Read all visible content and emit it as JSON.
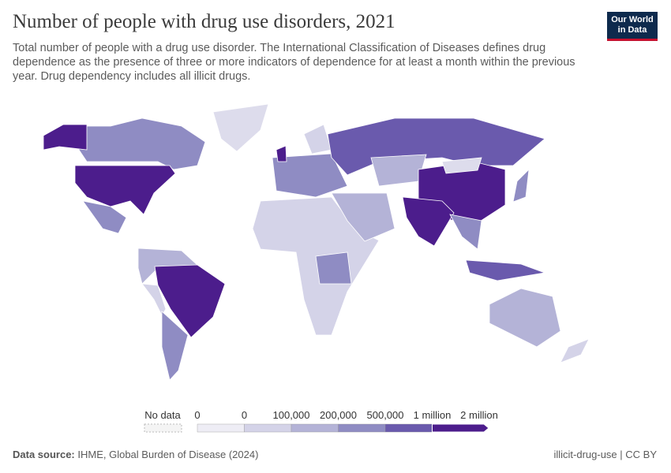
{
  "header": {
    "title": "Number of people with drug use disorders, 2021",
    "subtitle": "Total number of people with a drug use disorder. The International Classification of Diseases defines drug dependence as the presence of three or more indicators of dependence for at least a month within the previous year. Drug dependency includes all illicit drugs.",
    "logo": [
      "Our World",
      "in Data"
    ]
  },
  "legend": {
    "no_data": "No data",
    "labels": [
      "0",
      "0",
      "100,000",
      "200,000",
      "500,000",
      "1 million",
      "2 million"
    ],
    "colors": [
      "#eeedf5",
      "#d4d3e8",
      "#b4b3d7",
      "#8f8cc3",
      "#6a5aad",
      "#4c1d8c"
    ]
  },
  "footer": {
    "source_label": "Data source:",
    "source": "IHME, Global Burden of Disease (2024)",
    "right": "illicit-drug-use | CC BY"
  }
}
